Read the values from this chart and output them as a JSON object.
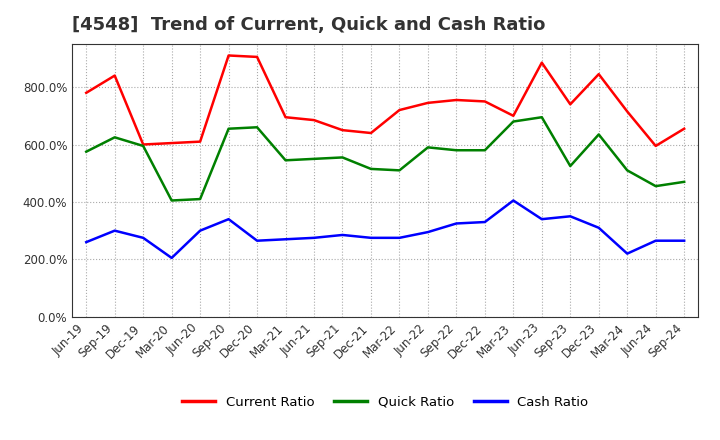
{
  "title": "[4548]  Trend of Current, Quick and Cash Ratio",
  "x_labels": [
    "Jun-19",
    "Sep-19",
    "Dec-19",
    "Mar-20",
    "Jun-20",
    "Sep-20",
    "Dec-20",
    "Mar-21",
    "Jun-21",
    "Sep-21",
    "Dec-21",
    "Mar-22",
    "Jun-22",
    "Sep-22",
    "Dec-22",
    "Mar-23",
    "Jun-23",
    "Sep-23",
    "Dec-23",
    "Mar-24",
    "Jun-24",
    "Sep-24"
  ],
  "current_ratio": [
    780,
    840,
    600,
    605,
    610,
    910,
    905,
    695,
    685,
    650,
    640,
    720,
    745,
    755,
    750,
    700,
    885,
    740,
    845,
    715,
    595,
    655
  ],
  "quick_ratio": [
    575,
    625,
    595,
    405,
    410,
    655,
    660,
    545,
    550,
    555,
    515,
    510,
    590,
    580,
    580,
    680,
    695,
    525,
    635,
    510,
    455,
    470
  ],
  "cash_ratio": [
    260,
    300,
    275,
    205,
    300,
    340,
    265,
    270,
    275,
    285,
    275,
    275,
    295,
    325,
    330,
    405,
    340,
    350,
    310,
    220,
    265,
    265
  ],
  "current_color": "#FF0000",
  "quick_color": "#008000",
  "cash_color": "#0000FF",
  "plot_bg_color": "#FFFFFF",
  "fig_bg_color": "#FFFFFF",
  "ylim": [
    0,
    950
  ],
  "yticks": [
    0,
    200,
    400,
    600,
    800
  ],
  "title_fontsize": 13,
  "legend_labels": [
    "Current Ratio",
    "Quick Ratio",
    "Cash Ratio"
  ],
  "grid_color": "#AAAAAA",
  "grid_style": ":",
  "linewidth": 1.8
}
